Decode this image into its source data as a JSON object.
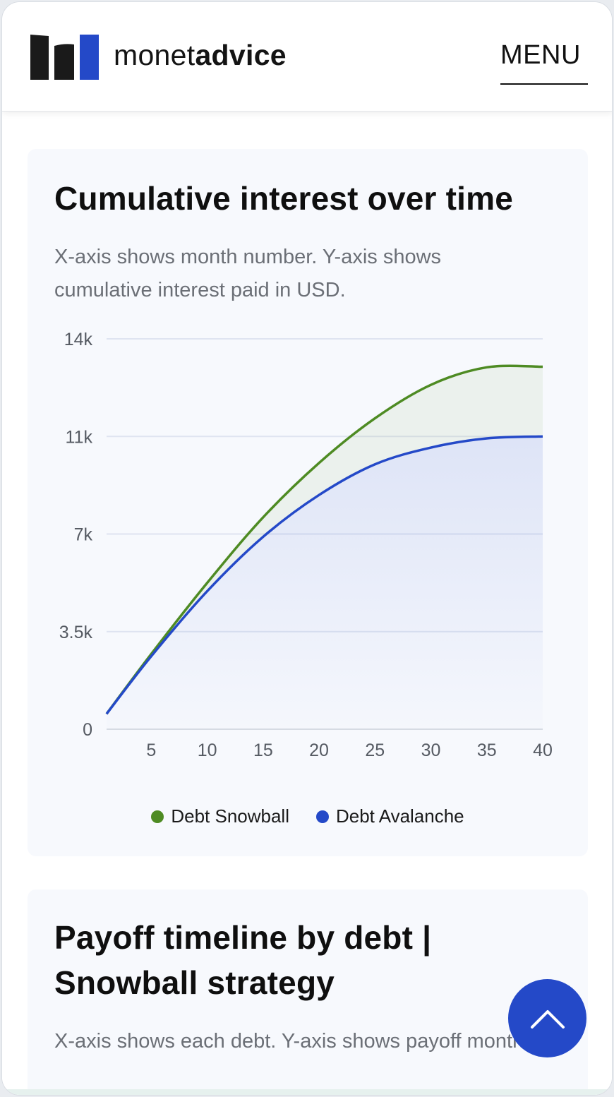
{
  "brand": {
    "name_light": "monet",
    "name_bold": "advice",
    "colors": {
      "dark": "#1a1a1a",
      "accent": "#2449c8"
    }
  },
  "header": {
    "menu_label": "MENU"
  },
  "cards": [
    {
      "title": "Cumulative interest over time",
      "description": "X-axis shows month number. Y-axis shows cumulative interest paid in USD."
    },
    {
      "title": "Payoff timeline by debt | Snowball strategy",
      "description": "X-axis shows each debt. Y-axis shows payoff month."
    }
  ],
  "chart_data": {
    "type": "area",
    "title": "Cumulative interest over time",
    "xlabel": "",
    "ylabel": "",
    "x_ticks": [
      5,
      10,
      15,
      20,
      25,
      30,
      35,
      40
    ],
    "y_ticks": [
      "0",
      "3.5k",
      "7k",
      "11k",
      "14k"
    ],
    "y_tick_values": [
      0,
      3500,
      7000,
      10500,
      14000
    ],
    "xlim": [
      1,
      40
    ],
    "ylim": [
      0,
      14000
    ],
    "grid": true,
    "legend_position": "bottom",
    "x": [
      1,
      5,
      10,
      15,
      20,
      25,
      30,
      35,
      40
    ],
    "series": [
      {
        "name": "Debt Snowball",
        "color": "#4e8b23",
        "values": [
          550,
          2700,
          5250,
          7600,
          9550,
          11150,
          12350,
          12980,
          13000
        ]
      },
      {
        "name": "Debt Avalanche",
        "color": "#2449c8",
        "values": [
          550,
          2620,
          4950,
          6900,
          8400,
          9500,
          10100,
          10430,
          10500
        ]
      }
    ]
  },
  "scroll_top": {
    "icon": "chevron-up-icon"
  }
}
